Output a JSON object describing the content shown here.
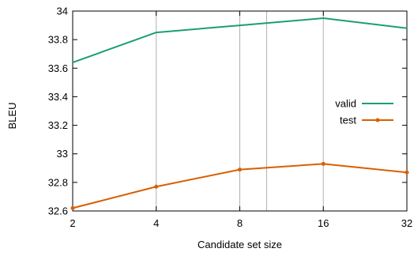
{
  "chart_data": {
    "type": "line",
    "xlabel": "Candidate set size",
    "ylabel": "BLEU",
    "x_scale": "log2",
    "x_ticks": [
      2,
      4,
      8,
      16,
      32
    ],
    "x_tick_labels": [
      "2",
      "4",
      "8",
      "16",
      "32"
    ],
    "x_minor_gridlines": [
      10
    ],
    "xlim": [
      2,
      32
    ],
    "ylim": [
      32.6,
      34
    ],
    "y_ticks": [
      32.6,
      32.8,
      33,
      33.2,
      33.4,
      33.6,
      33.8,
      34
    ],
    "y_tick_labels": [
      "32.6",
      "32.8",
      "33",
      "33.2",
      "33.4",
      "33.6",
      "33.8",
      "34"
    ],
    "grid": "x-only",
    "legend_position": "center-right",
    "series": [
      {
        "name": "valid",
        "color": "#1a9e77",
        "marker": "none",
        "x": [
          2,
          4,
          8,
          16,
          32
        ],
        "y": [
          33.64,
          33.85,
          33.9,
          33.95,
          33.88
        ]
      },
      {
        "name": "test",
        "color": "#d95f02",
        "marker": "dot",
        "x": [
          2,
          4,
          8,
          16,
          32
        ],
        "y": [
          32.62,
          32.77,
          32.89,
          32.93,
          32.87
        ]
      }
    ]
  }
}
